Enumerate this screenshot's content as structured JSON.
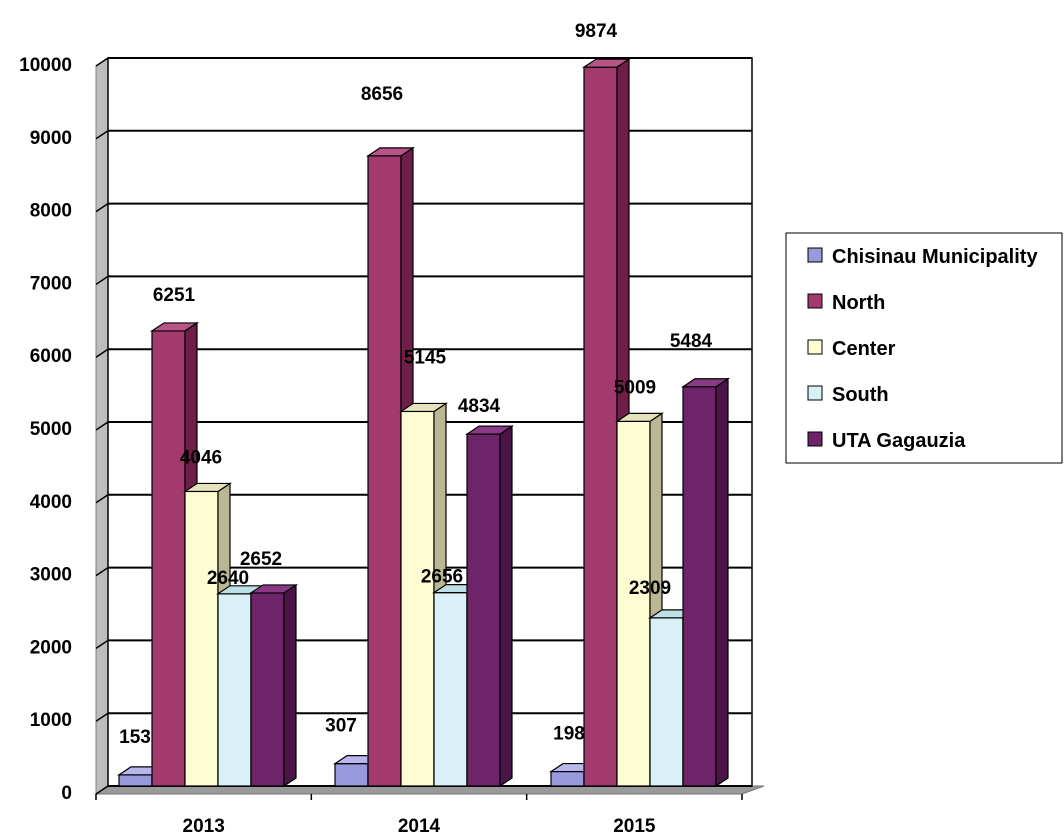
{
  "chart_data": {
    "type": "bar",
    "categories": [
      "2013",
      "2014",
      "2015"
    ],
    "series": [
      {
        "name": "Chisinau Municipality",
        "values": [
          153,
          307,
          198
        ],
        "color": "#9999dd",
        "side": "#6a6aa8",
        "top": "#b8b8ee"
      },
      {
        "name": "North",
        "values": [
          6251,
          8656,
          9874
        ],
        "color": "#a33a6e",
        "side": "#6e1f47",
        "top": "#b95586"
      },
      {
        "name": "Center",
        "values": [
          4046,
          5145,
          5009
        ],
        "color": "#fdfcd3",
        "side": "#b9b893",
        "top": "#e3e2bb"
      },
      {
        "name": "South",
        "values": [
          2640,
          2656,
          2309
        ],
        "color": "#d9f1f6",
        "side": "#96bcc4",
        "top": "#bde0e6"
      },
      {
        "name": "UTA Gagauzia",
        "values": [
          2652,
          4834,
          5484
        ],
        "color": "#6e2468",
        "side": "#4a1546",
        "top": "#8a3a84"
      }
    ],
    "ylim": [
      0,
      10000
    ],
    "yticks": [
      "0",
      "1000",
      "2000",
      "3000",
      "4000",
      "5000",
      "6000",
      "7000",
      "8000",
      "9000",
      "10000"
    ],
    "grid": true,
    "legend_position": "right",
    "title": "",
    "xlabel": "",
    "ylabel": ""
  }
}
